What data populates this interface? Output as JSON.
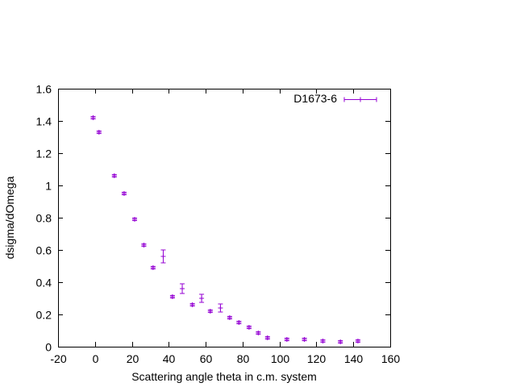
{
  "chart_data": {
    "type": "scatter",
    "title": "",
    "xlabel": "Scattering angle theta in c.m. system",
    "ylabel": "dsigma/dOmega",
    "xlim": [
      -20,
      160
    ],
    "ylim": [
      0,
      1.6
    ],
    "xticks": [
      "-20",
      "0",
      "20",
      "40",
      "60",
      "80",
      "100",
      "120",
      "140",
      "160"
    ],
    "yticks": [
      "0",
      "0.2",
      "0.4",
      "0.6",
      "0.8",
      "1",
      "1.2",
      "1.4",
      "1.6"
    ],
    "grid": false,
    "legend_position": "top-right",
    "marker_color": "#9400d3",
    "series": [
      {
        "name": "D1673-6",
        "points": [
          {
            "x": -1,
            "y": 1.42,
            "err": 0.008
          },
          {
            "x": 2.2,
            "y": 1.33,
            "err": 0.008
          },
          {
            "x": 10.5,
            "y": 1.06,
            "err": 0.008
          },
          {
            "x": 15.8,
            "y": 0.95,
            "err": 0.008
          },
          {
            "x": 21.5,
            "y": 0.79,
            "err": 0.008
          },
          {
            "x": 26.5,
            "y": 0.63,
            "err": 0.008
          },
          {
            "x": 31.5,
            "y": 0.49,
            "err": 0.008
          },
          {
            "x": 37,
            "y": 0.56,
            "err": 0.04
          },
          {
            "x": 42,
            "y": 0.31,
            "err": 0.008
          },
          {
            "x": 47.3,
            "y": 0.36,
            "err": 0.03
          },
          {
            "x": 52.8,
            "y": 0.26,
            "err": 0.008
          },
          {
            "x": 57.8,
            "y": 0.3,
            "err": 0.025
          },
          {
            "x": 62.5,
            "y": 0.22,
            "err": 0.008
          },
          {
            "x": 68,
            "y": 0.24,
            "err": 0.025
          },
          {
            "x": 73,
            "y": 0.18,
            "err": 0.008
          },
          {
            "x": 78,
            "y": 0.15,
            "err": 0.008
          },
          {
            "x": 83.5,
            "y": 0.12,
            "err": 0.008
          },
          {
            "x": 88.5,
            "y": 0.085,
            "err": 0.008
          },
          {
            "x": 93.5,
            "y": 0.055,
            "err": 0.008
          },
          {
            "x": 104,
            "y": 0.045,
            "err": 0.008
          },
          {
            "x": 113.5,
            "y": 0.045,
            "err": 0.008
          },
          {
            "x": 123.5,
            "y": 0.035,
            "err": 0.008
          },
          {
            "x": 133,
            "y": 0.03,
            "err": 0.008
          },
          {
            "x": 142.5,
            "y": 0.035,
            "err": 0.008
          }
        ]
      }
    ]
  }
}
